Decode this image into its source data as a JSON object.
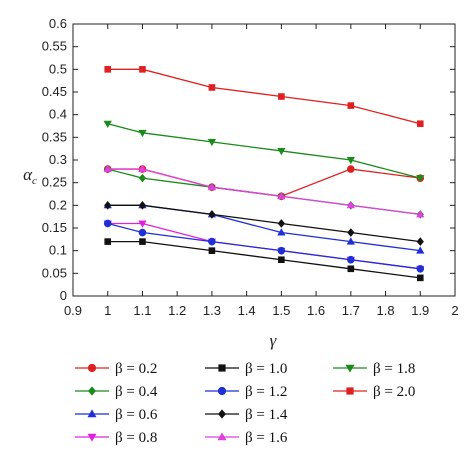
{
  "chart_data": {
    "type": "line",
    "title": "",
    "xlabel": "γ",
    "ylabel": "α",
    "ylabel_subscript": "c",
    "xlim": [
      0.9,
      2.0
    ],
    "ylim": [
      0,
      0.6
    ],
    "xticks": [
      "0.9",
      "1",
      "1.1",
      "1.2",
      "1.3",
      "1.4",
      "1.5",
      "1.6",
      "1.7",
      "1.8",
      "1.9",
      "2"
    ],
    "yticks": [
      "0",
      "0.05",
      "0.1",
      "0.15",
      "0.2",
      "0.25",
      "0.3",
      "0.35",
      "0.4",
      "0.45",
      "0.5",
      "0.55",
      "0.6"
    ],
    "grid": false,
    "legend_position": "bottom",
    "x": [
      1.0,
      1.1,
      1.3,
      1.5,
      1.7,
      1.9
    ],
    "series": [
      {
        "name": "β = 0.2",
        "color": "#e02020",
        "marker": "circle",
        "values": [
          0.28,
          0.28,
          0.24,
          0.22,
          0.28,
          0.26
        ]
      },
      {
        "name": "β = 0.4",
        "color": "#1a8a1a",
        "marker": "diamond",
        "values": [
          0.28,
          0.26,
          0.24,
          0.22,
          0.2,
          0.18
        ]
      },
      {
        "name": "β = 0.6",
        "color": "#1f2fd6",
        "marker": "triangle-up",
        "values": [
          0.2,
          0.2,
          0.18,
          0.14,
          0.12,
          0.1
        ]
      },
      {
        "name": "β = 0.8",
        "color": "#e020e0",
        "marker": "triangle-down",
        "values": [
          0.16,
          0.16,
          0.12,
          0.1,
          0.08,
          0.06
        ]
      },
      {
        "name": "β = 1.0",
        "color": "#111111",
        "marker": "square",
        "values": [
          0.12,
          0.12,
          0.1,
          0.08,
          0.06,
          0.04
        ]
      },
      {
        "name": "β = 1.2",
        "color": "#1f2fd6",
        "marker": "circle",
        "values": [
          0.16,
          0.14,
          0.12,
          0.1,
          0.08,
          0.06
        ]
      },
      {
        "name": "β = 1.4",
        "color": "#111111",
        "marker": "diamond",
        "values": [
          0.2,
          0.2,
          0.18,
          0.16,
          0.14,
          0.12
        ]
      },
      {
        "name": "β = 1.6",
        "color": "#e040e0",
        "marker": "triangle-up",
        "values": [
          0.28,
          0.28,
          0.24,
          0.22,
          0.2,
          0.18
        ]
      },
      {
        "name": "β = 1.8",
        "color": "#1a8a1a",
        "marker": "triangle-down",
        "values": [
          0.38,
          0.36,
          0.34,
          0.32,
          0.3,
          0.26
        ]
      },
      {
        "name": "β = 2.0",
        "color": "#e02020",
        "marker": "square",
        "values": [
          0.5,
          0.5,
          0.46,
          0.44,
          0.42,
          0.38
        ]
      }
    ]
  }
}
